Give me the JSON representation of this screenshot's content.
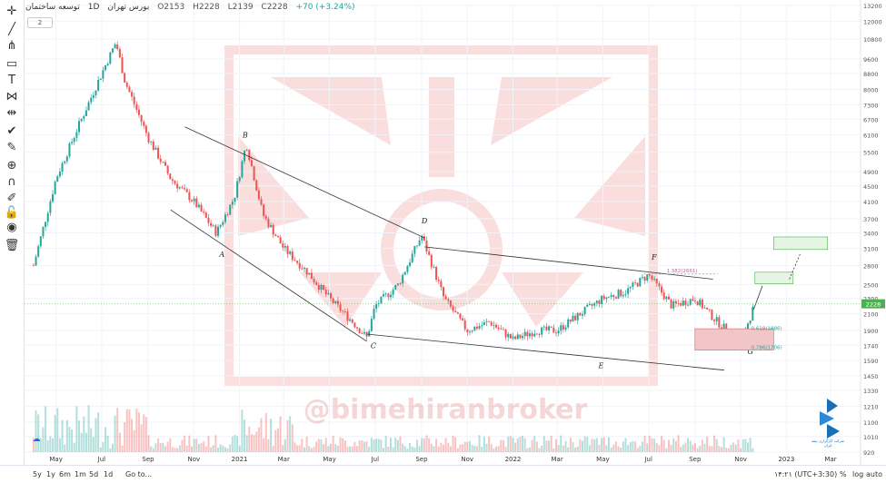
{
  "header": {
    "symbol": "توسعه ساختمان",
    "interval": "1D",
    "exchange": "بورس تهران",
    "open": "O2153",
    "high": "H2228",
    "low": "L2139",
    "close": "C2228",
    "change": "+70 (+3.24%)",
    "sub_badge": "2"
  },
  "toolbar": {
    "icons": [
      "crosshair-icon",
      "trend-line-icon",
      "pitchfork-icon",
      "rectangle-icon",
      "text-icon",
      "pattern-icon",
      "measure-icon",
      "checkmark-icon",
      "brush-icon",
      "zoom-icon",
      "magnet-icon",
      "lock-drawing-icon",
      "lock-icon",
      "eye-icon",
      "trash-icon"
    ]
  },
  "bottombar": {
    "ranges": [
      "5y",
      "1y",
      "6m",
      "1m",
      "5d",
      "1d"
    ],
    "goto": "Go to...",
    "clock": "۱۴:۲۱ (UTC+3:30)",
    "percent": "%",
    "log": "log",
    "auto": "auto"
  },
  "watermark": "@bimehiranbroker",
  "logo_caption": "شرکت کارگزاری بیمه ایران",
  "colors": {
    "up": "#26a69a",
    "down": "#ef5350",
    "trendline": "#333333",
    "fib_text": "#26a69a",
    "fib_top": "#d05ea0",
    "box_green": "#e6f4e4",
    "box_green_border": "#4caf50",
    "box_red": "#f2c6c6",
    "box_red_border": "#c76b6b",
    "price_tag": "#4caf50"
  },
  "chart_data": {
    "type": "candlestick",
    "title": "",
    "x_ticks": [
      "May",
      "Jul",
      "Sep",
      "Nov",
      "2021",
      "Mar",
      "May",
      "Jul",
      "Sep",
      "Nov",
      "2022",
      "Mar",
      "May",
      "Jul",
      "Sep",
      "Nov",
      "2023",
      "Mar"
    ],
    "y_scale": "log",
    "y_ticks": [
      13200,
      12000,
      10800,
      9600,
      8800,
      8000,
      7300,
      6700,
      6100,
      5500,
      4900,
      4500,
      4100,
      3700,
      3400,
      3100,
      2800,
      2500,
      2300,
      2100,
      1900,
      1740,
      1590,
      1450,
      1330,
      1210,
      1100,
      1010,
      920
    ],
    "last_price": 2228,
    "approx_path": [
      {
        "x": "2020-04",
        "y": 2800
      },
      {
        "x": "2020-05",
        "y": 4700
      },
      {
        "x": "2020-06",
        "y": 6500
      },
      {
        "x": "2020-07",
        "y": 8800
      },
      {
        "x": "2020-07-20",
        "y": 10600
      },
      {
        "x": "2020-08",
        "y": 8400
      },
      {
        "x": "2020-09",
        "y": 6000
      },
      {
        "x": "2020-10",
        "y": 4700
      },
      {
        "x": "2020-11",
        "y": 4100
      },
      {
        "x": "2020-12",
        "y": 3400
      },
      {
        "x": "2020-12-25",
        "y": 4200
      },
      {
        "x": "2021-01-10",
        "y": 5800
      },
      {
        "x": "2021-02",
        "y": 3800
      },
      {
        "x": "2021-03",
        "y": 3100
      },
      {
        "x": "2021-04",
        "y": 2700
      },
      {
        "x": "2021-05",
        "y": 2300
      },
      {
        "x": "2021-06",
        "y": 2000
      },
      {
        "x": "2021-06-20",
        "y": 1820
      },
      {
        "x": "2021-07",
        "y": 2200
      },
      {
        "x": "2021-08",
        "y": 2500
      },
      {
        "x": "2021-09",
        "y": 3350
      },
      {
        "x": "2021-10",
        "y": 2300
      },
      {
        "x": "2021-11",
        "y": 1900
      },
      {
        "x": "2021-12",
        "y": 2000
      },
      {
        "x": "2022-01",
        "y": 1800
      },
      {
        "x": "2022-02",
        "y": 1900
      },
      {
        "x": "2022-03",
        "y": 1900
      },
      {
        "x": "2022-04",
        "y": 2100
      },
      {
        "x": "2022-05",
        "y": 2300
      },
      {
        "x": "2022-06",
        "y": 2400
      },
      {
        "x": "2022-07",
        "y": 2650
      },
      {
        "x": "2022-08",
        "y": 2200
      },
      {
        "x": "2022-09",
        "y": 2300
      },
      {
        "x": "2022-10",
        "y": 2000
      },
      {
        "x": "2022-11",
        "y": 1770
      },
      {
        "x": "2022-11-20",
        "y": 2228
      }
    ],
    "wave_labels": [
      "A",
      "B",
      "C",
      "D",
      "E",
      "F",
      "G"
    ],
    "fib_levels": [
      {
        "label": "1.382(2661)",
        "y": 2661
      },
      {
        "label": "0.618(1886)",
        "y": 1886
      },
      {
        "label": "0.786(1706)",
        "y": 1706
      }
    ]
  }
}
